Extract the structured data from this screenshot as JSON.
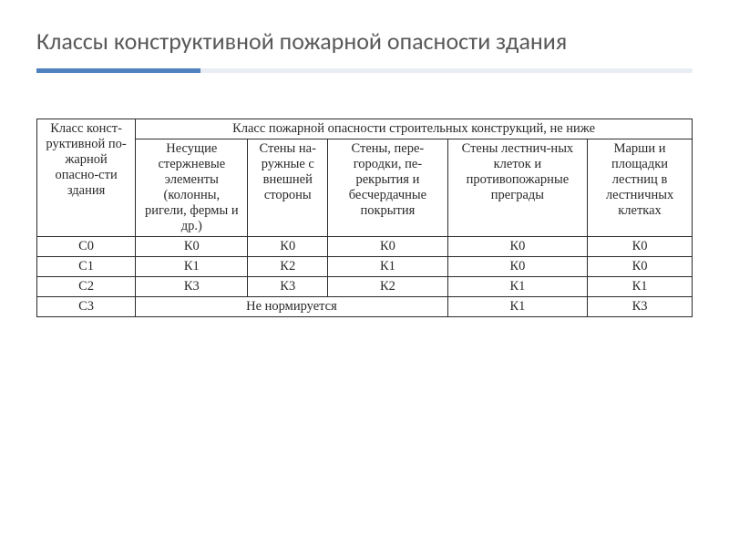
{
  "title": "Классы конструктивной пожарной опасности здания",
  "accent_color": "#4f81bd",
  "rule_bg_color": "#e9edf4",
  "table": {
    "type": "table",
    "corner_header": "Класс конст-руктивной по-жарной опасно-сти здания",
    "span_header": "Класс пожарной опасности строительных конструкций, не ниже",
    "columns": [
      "Несущие стержневые элементы (колонны, ригели, фермы и др.)",
      "Стены на-ружные с внешней стороны",
      "Стены, пере-городки, пе-рекрытия и бесчердачные покрытия",
      "Стены лестнич-ных клеток и противопожарные преграды",
      "Марши и площадки лестниц в лестничных клетках"
    ],
    "rows": [
      {
        "class": "С0",
        "c0": "К0",
        "c1": "К0",
        "c2": "К0",
        "c3": "К0",
        "c4": "К0"
      },
      {
        "class": "С1",
        "c0": "К1",
        "c1": "К2",
        "c2": "К1",
        "c3": "К0",
        "c4": "К0"
      },
      {
        "class": "С2",
        "c0": "К3",
        "c1": "К3",
        "c2": "К2",
        "c3": "К1",
        "c4": "К1"
      },
      {
        "class": "С3",
        "span": "Не нормируется",
        "c3": "К1",
        "c4": "К3"
      }
    ]
  }
}
